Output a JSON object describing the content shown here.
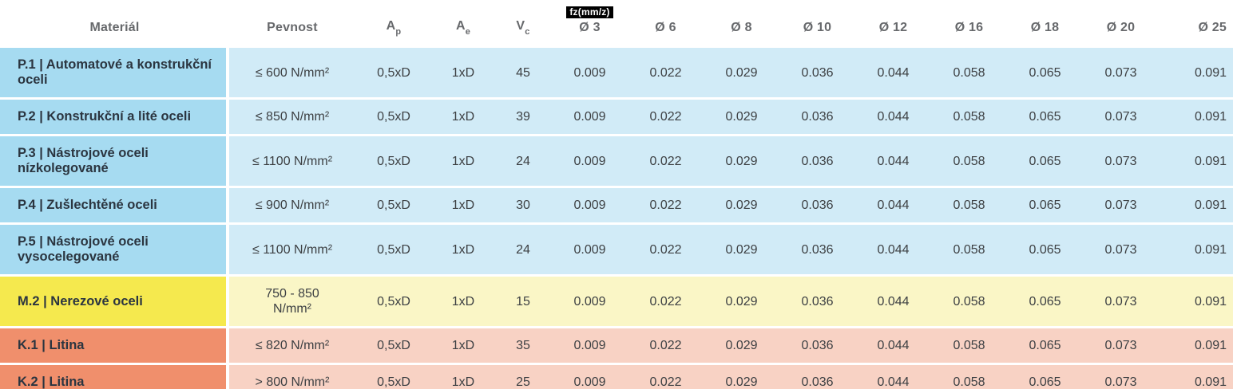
{
  "table": {
    "fz_chip": "fz(mm/z)",
    "columns": [
      {
        "key": "material",
        "label": "Materiál"
      },
      {
        "key": "pevnost",
        "label": "Pevnost"
      },
      {
        "key": "ap",
        "label": "A",
        "sub": "p"
      },
      {
        "key": "ae",
        "label": "A",
        "sub": "e"
      },
      {
        "key": "vc",
        "label": "V",
        "sub": "c"
      },
      {
        "key": "d3",
        "label": "Ø 3",
        "chip": true
      },
      {
        "key": "d6",
        "label": "Ø 6"
      },
      {
        "key": "d8",
        "label": "Ø 8"
      },
      {
        "key": "d10",
        "label": "Ø 10"
      },
      {
        "key": "d12",
        "label": "Ø 12"
      },
      {
        "key": "d16",
        "label": "Ø 16"
      },
      {
        "key": "d18",
        "label": "Ø 18"
      },
      {
        "key": "d20",
        "label": "Ø 20"
      },
      {
        "key": "d25",
        "label": "Ø 25"
      }
    ],
    "rows": [
      {
        "theme": "blue",
        "material": "P.1 | Automatové a konstrukční oceli",
        "pevnost": "≤ 600 N/mm²",
        "ap": "0,5xD",
        "ae": "1xD",
        "vc": "45",
        "fz": [
          "0.009",
          "0.022",
          "0.029",
          "0.036",
          "0.044",
          "0.058",
          "0.065",
          "0.073",
          "0.091"
        ]
      },
      {
        "theme": "blue",
        "material": "P.2 | Konstrukční a lité oceli",
        "pevnost": "≤ 850 N/mm²",
        "ap": "0,5xD",
        "ae": "1xD",
        "vc": "39",
        "fz": [
          "0.009",
          "0.022",
          "0.029",
          "0.036",
          "0.044",
          "0.058",
          "0.065",
          "0.073",
          "0.091"
        ]
      },
      {
        "theme": "blue",
        "material": "P.3 | Nástrojové oceli nízkolegované",
        "pevnost": "≤ 1100 N/mm²",
        "ap": "0,5xD",
        "ae": "1xD",
        "vc": "24",
        "fz": [
          "0.009",
          "0.022",
          "0.029",
          "0.036",
          "0.044",
          "0.058",
          "0.065",
          "0.073",
          "0.091"
        ]
      },
      {
        "theme": "blue",
        "material": "P.4 | Zušlechtěné oceli",
        "pevnost": "≤ 900 N/mm²",
        "ap": "0,5xD",
        "ae": "1xD",
        "vc": "30",
        "fz": [
          "0.009",
          "0.022",
          "0.029",
          "0.036",
          "0.044",
          "0.058",
          "0.065",
          "0.073",
          "0.091"
        ]
      },
      {
        "theme": "blue",
        "material": "P.5 | Nástrojové oceli vysocelegované",
        "pevnost": "≤ 1100 N/mm²",
        "ap": "0,5xD",
        "ae": "1xD",
        "vc": "24",
        "fz": [
          "0.009",
          "0.022",
          "0.029",
          "0.036",
          "0.044",
          "0.058",
          "0.065",
          "0.073",
          "0.091"
        ]
      },
      {
        "theme": "yellow",
        "material": "M.2 | Nerezové oceli",
        "pevnost": "750 - 850\nN/mm²",
        "ap": "0,5xD",
        "ae": "1xD",
        "vc": "15",
        "fz": [
          "0.009",
          "0.022",
          "0.029",
          "0.036",
          "0.044",
          "0.058",
          "0.065",
          "0.073",
          "0.091"
        ]
      },
      {
        "theme": "orange",
        "material": "K.1 | Litina",
        "pevnost": "≤ 820 N/mm²",
        "ap": "0,5xD",
        "ae": "1xD",
        "vc": "35",
        "fz": [
          "0.009",
          "0.022",
          "0.029",
          "0.036",
          "0.044",
          "0.058",
          "0.065",
          "0.073",
          "0.091"
        ]
      },
      {
        "theme": "orange",
        "material": "K.2 | Litina",
        "pevnost": "> 800 N/mm²",
        "ap": "0,5xD",
        "ae": "1xD",
        "vc": "25",
        "fz": [
          "0.009",
          "0.022",
          "0.029",
          "0.036",
          "0.044",
          "0.058",
          "0.065",
          "0.073",
          "0.091"
        ]
      }
    ]
  },
  "colors": {
    "blue_dark": "#a6dbf1",
    "blue_light": "#d1ebf7",
    "yellow_dark": "#f5e94e",
    "yellow_light": "#faf6c6",
    "orange_dark": "#f08f6c",
    "orange_light": "#f8d2c4",
    "chip_bg": "#000000",
    "chip_text": "#ffffff",
    "header_text": "#67696c",
    "material_text": "#2b3540",
    "value_text": "#3d4043"
  }
}
